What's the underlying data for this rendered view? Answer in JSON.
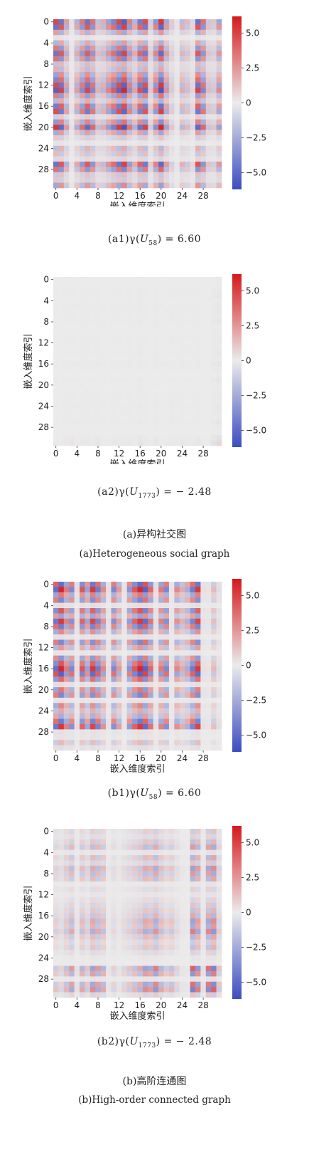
{
  "color_scale": {
    "low_color": "#3b4cc0",
    "mid_color": "#ebebeb",
    "high_color": "#d6191b",
    "vmin": -6.2,
    "vmax": 6.2,
    "ticks": [
      "5.0",
      "2.5",
      "0",
      "−2.5",
      "−5.0"
    ]
  },
  "panels": [
    {
      "caption_prefix": "(a1)γ(",
      "caption_var": "U",
      "caption_sub": "58",
      "caption_suffix": ") = 6.60",
      "xlabel": "嵌入维度索引",
      "ylabel": "嵌入维度索引",
      "ticks": [
        "0",
        "4",
        "8",
        "12",
        "16",
        "20",
        "24",
        "28"
      ]
    },
    {
      "caption_prefix": "(a2)γ(",
      "caption_var": "U",
      "caption_sub": "1773",
      "caption_suffix": ") = − 2.48",
      "xlabel": "嵌入维度索引",
      "ylabel": "嵌入维度索引",
      "ticks": [
        "0",
        "4",
        "8",
        "12",
        "16",
        "20",
        "24",
        "28"
      ]
    },
    {
      "caption_prefix": "(b1)γ(",
      "caption_var": "U",
      "caption_sub": "58",
      "caption_suffix": ") = 6.60",
      "xlabel": "嵌入维度索引",
      "ylabel": "嵌入维度索引",
      "ticks": [
        "0",
        "4",
        "8",
        "12",
        "16",
        "20",
        "24",
        "28"
      ]
    },
    {
      "caption_prefix": "(b2)γ(",
      "caption_var": "U",
      "caption_sub": "1773",
      "caption_suffix": ") = − 2.48",
      "xlabel": "嵌入维度索引",
      "ylabel": "嵌入维度索引",
      "ticks": [
        "0",
        "4",
        "8",
        "12",
        "16",
        "20",
        "24",
        "28"
      ]
    }
  ],
  "groups": {
    "a_cn": "(a)异构社交图",
    "a_en": "(a)Heterogeneous social graph",
    "b_cn": "(b)高阶连通图",
    "b_en": "(b)High-order connected graph"
  },
  "chart_data": [
    {
      "type": "heatmap",
      "n": 32,
      "vector": [
        -5.5,
        5.2,
        -2.6,
        0.4,
        2.4,
        -3.8,
        5.1,
        -4.0,
        1.8,
        -2.1,
        3.2,
        4.4,
        -5.4,
        6.0,
        -3.6,
        2.3,
        4.8,
        -5.2,
        1.2,
        3.7,
        -6.0,
        2.8,
        -1.2,
        0.3,
        2.0,
        -1.6,
        0.8,
        5.2,
        -4.0,
        1.5,
        -1.3,
        3.0
      ],
      "ticks": [
        0,
        4,
        8,
        12,
        16,
        20,
        24,
        28
      ],
      "xlabel": "嵌入维度索引",
      "ylabel": "嵌入维度索引",
      "colorbar_ticks": [
        5.0,
        2.5,
        0,
        -2.5,
        -5.0
      ]
    },
    {
      "type": "heatmap",
      "n": 32,
      "vector": [
        0.3,
        0.1,
        0.4,
        -0.6,
        0.2,
        0.5,
        -0.5,
        0.3,
        0.6,
        0.2,
        -0.1,
        0.4,
        0.3,
        -0.3,
        0.5,
        0.2,
        -0.8,
        0.4,
        0.1,
        0.6,
        0.2,
        -0.2,
        0.4,
        0.3,
        0.5,
        -0.4,
        0.3,
        0.6,
        0.2,
        0.1,
        -1.1,
        2.0
      ],
      "ticks": [
        0,
        4,
        8,
        12,
        16,
        20,
        24,
        28
      ],
      "xlabel": "嵌入维度索引",
      "ylabel": "嵌入维度索引",
      "colorbar_ticks": [
        5.0,
        2.5,
        0,
        -2.5,
        -5.0
      ]
    },
    {
      "type": "heatmap",
      "n": 32,
      "vector": [
        -5.0,
        6.0,
        3.5,
        -4.0,
        0.5,
        4.5,
        -3.0,
        5.5,
        -4.5,
        3.0,
        0.4,
        -4.0,
        2.5,
        0.3,
        -3.5,
        4.5,
        6.0,
        -5.5,
        4.0,
        0.5,
        3.5,
        -4.0,
        0.3,
        3.0,
        2.0,
        -2.5,
        -4.5,
        5.5,
        0.4,
        0.3,
        1.5,
        -0.5
      ],
      "ticks": [
        0,
        4,
        8,
        12,
        16,
        20,
        24,
        28
      ],
      "xlabel": "嵌入维度索引",
      "ylabel": "嵌入维度索引",
      "colorbar_ticks": [
        5.0,
        2.5,
        0,
        -2.5,
        -5.0
      ]
    },
    {
      "type": "heatmap",
      "n": 32,
      "vector": [
        1.5,
        -1.0,
        2.0,
        -3.0,
        0.5,
        2.5,
        -1.5,
        3.5,
        -3.0,
        2.5,
        0.3,
        -1.0,
        0.4,
        1.0,
        -1.5,
        2.0,
        -2.5,
        3.5,
        3.0,
        -4.0,
        2.5,
        1.5,
        2.0,
        -1.0,
        0.3,
        0.2,
        -5.0,
        4.0,
        0.5,
        -4.5,
        5.0,
        -1.5
      ],
      "ticks": [
        0,
        4,
        8,
        12,
        16,
        20,
        24,
        28
      ],
      "xlabel": "嵌入维度索引",
      "ylabel": "嵌入维度索引",
      "colorbar_ticks": [
        5.0,
        2.5,
        0,
        -2.5,
        -5.0
      ]
    }
  ]
}
